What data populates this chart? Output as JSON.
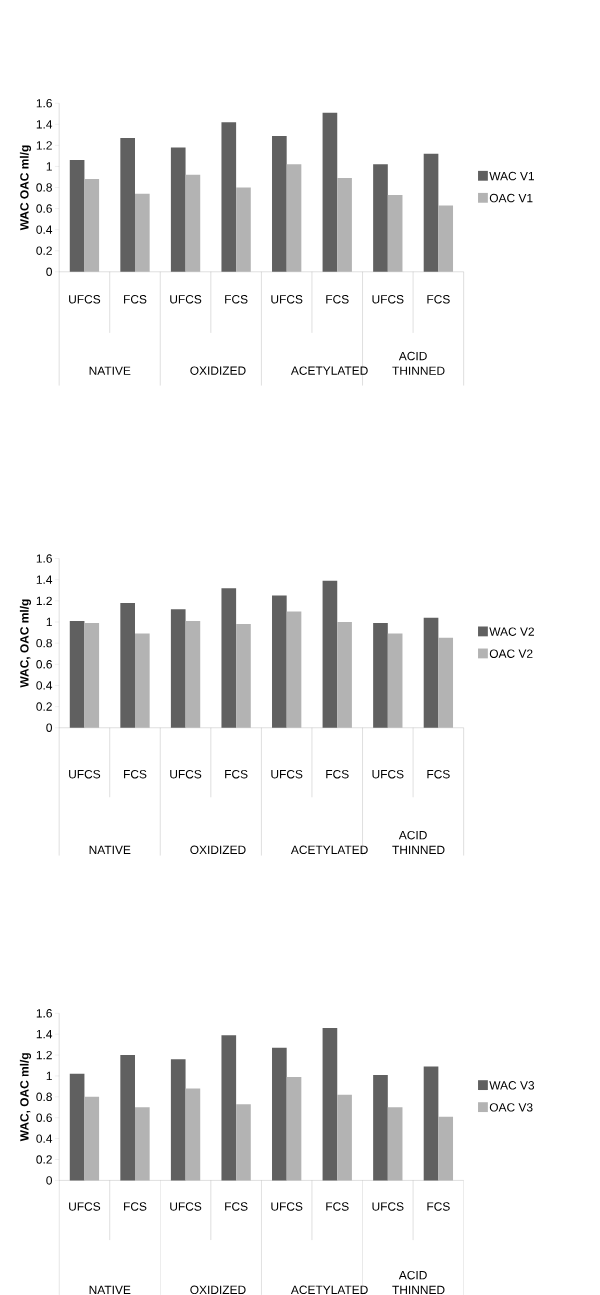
{
  "chart_data": [
    {
      "type": "bar",
      "ylabel": "WAC OAC ml/g",
      "categories": [
        "UFCS",
        "FCS",
        "UFCS",
        "FCS",
        "UFCS",
        "FCS",
        "UFCS",
        "FCS"
      ],
      "series": [
        {
          "name": "WAC V1",
          "color": "#606060",
          "values": [
            1.06,
            1.27,
            1.18,
            1.42,
            1.29,
            1.51,
            1.02,
            1.12
          ]
        },
        {
          "name": "OAC V1",
          "color": "#b3b3b3",
          "values": [
            0.88,
            0.74,
            0.92,
            0.8,
            1.02,
            0.89,
            0.73,
            0.63
          ]
        }
      ],
      "ylim": [
        0,
        1.6
      ],
      "yticks": [
        0,
        0.2,
        0.4,
        0.6,
        0.8,
        1,
        1.2,
        1.4,
        1.6
      ],
      "legend": "right",
      "annotations": [
        "NATIVE",
        "OXIDIZED",
        "ACETYLATED",
        "ACID THINNED"
      ]
    },
    {
      "type": "bar",
      "ylabel": "WAC, OAC ml/g",
      "categories": [
        "UFCS",
        "FCS",
        "UFCS",
        "FCS",
        "UFCS",
        "FCS",
        "UFCS",
        "FCS"
      ],
      "series": [
        {
          "name": "WAC V2",
          "color": "#606060",
          "values": [
            1.01,
            1.18,
            1.12,
            1.32,
            1.25,
            1.39,
            0.99,
            1.04
          ]
        },
        {
          "name": "OAC V2",
          "color": "#b3b3b3",
          "values": [
            0.99,
            0.89,
            1.01,
            0.98,
            1.1,
            1.0,
            0.89,
            0.85
          ]
        }
      ],
      "ylim": [
        0,
        1.6
      ],
      "yticks": [
        0,
        0.2,
        0.4,
        0.6,
        0.8,
        1,
        1.2,
        1.4,
        1.6
      ],
      "legend": "right",
      "annotations": [
        "NATIVE",
        "OXIDIZED",
        "ACETYLATED",
        "ACID THINNED"
      ]
    },
    {
      "type": "bar",
      "ylabel": "WAC, OAC ml/g",
      "categories": [
        "UFCS",
        "FCS",
        "UFCS",
        "FCS",
        "UFCS",
        "FCS",
        "UFCS",
        "FCS"
      ],
      "series": [
        {
          "name": "WAC V3",
          "color": "#606060",
          "values": [
            1.02,
            1.2,
            1.16,
            1.39,
            1.27,
            1.46,
            1.01,
            1.09
          ]
        },
        {
          "name": "OAC V3",
          "color": "#b3b3b3",
          "values": [
            0.8,
            0.7,
            0.88,
            0.73,
            0.99,
            0.82,
            0.7,
            0.61
          ]
        }
      ],
      "ylim": [
        0,
        1.6
      ],
      "yticks": [
        0,
        0.2,
        0.4,
        0.6,
        0.8,
        1,
        1.2,
        1.4,
        1.6
      ],
      "legend": "right",
      "annotations": [
        "NATIVE",
        "OXIDIZED",
        "ACETYLATED",
        "ACID THINNED"
      ]
    }
  ]
}
